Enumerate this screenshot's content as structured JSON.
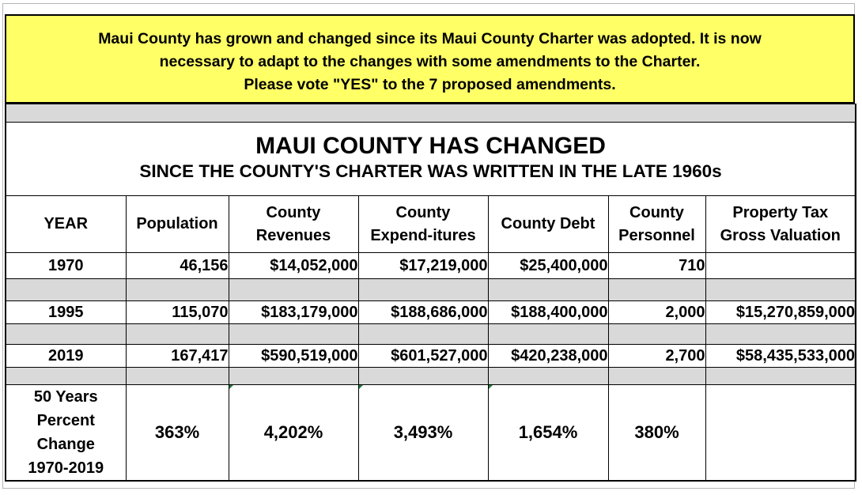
{
  "banner": {
    "line1": "Maui County has grown and changed since its Maui County Charter was adopted.  It is now",
    "line2": "necessary to adapt to the changes with some amendments to the Charter.",
    "line3": "Please vote \"YES\" to the 7 proposed amendments."
  },
  "title": {
    "main": "MAUI COUNTY HAS CHANGED",
    "sub": "SINCE THE COUNTY'S CHARTER WAS WRITTEN IN THE LATE 1960s"
  },
  "headers": {
    "year": "YEAR",
    "population": "Population",
    "revenues": [
      "County",
      "Revenues"
    ],
    "expenditures": [
      "County",
      "Expend-itures"
    ],
    "debt": "County Debt",
    "personnel": [
      "County",
      "Personnel"
    ],
    "valuation": [
      "Property Tax",
      "Gross Valuation"
    ]
  },
  "rows": [
    {
      "year": "1970",
      "population": "46,156",
      "revenues": "$14,052,000",
      "expenditures": "$17,219,000",
      "debt": "$25,400,000",
      "personnel": "710",
      "valuation": ""
    },
    {
      "year": "1995",
      "population": "115,070",
      "revenues": "$183,179,000",
      "expenditures": "$188,686,000",
      "debt": "$188,400,000",
      "personnel": "2,000",
      "valuation": "$15,270,859,000"
    },
    {
      "year": "2019",
      "population": "167,417",
      "revenues": "$590,519,000",
      "expenditures": "$601,527,000",
      "debt": "$420,238,000",
      "personnel": "2,700",
      "valuation": "$58,435,533,000"
    }
  ],
  "percent_change": {
    "label": [
      "50 Years",
      "Percent",
      "Change",
      "1970-2019"
    ],
    "population": "363%",
    "revenues": "4,202%",
    "expenditures": "3,493%",
    "debt": "1,654%",
    "personnel": "380%",
    "valuation": ""
  }
}
